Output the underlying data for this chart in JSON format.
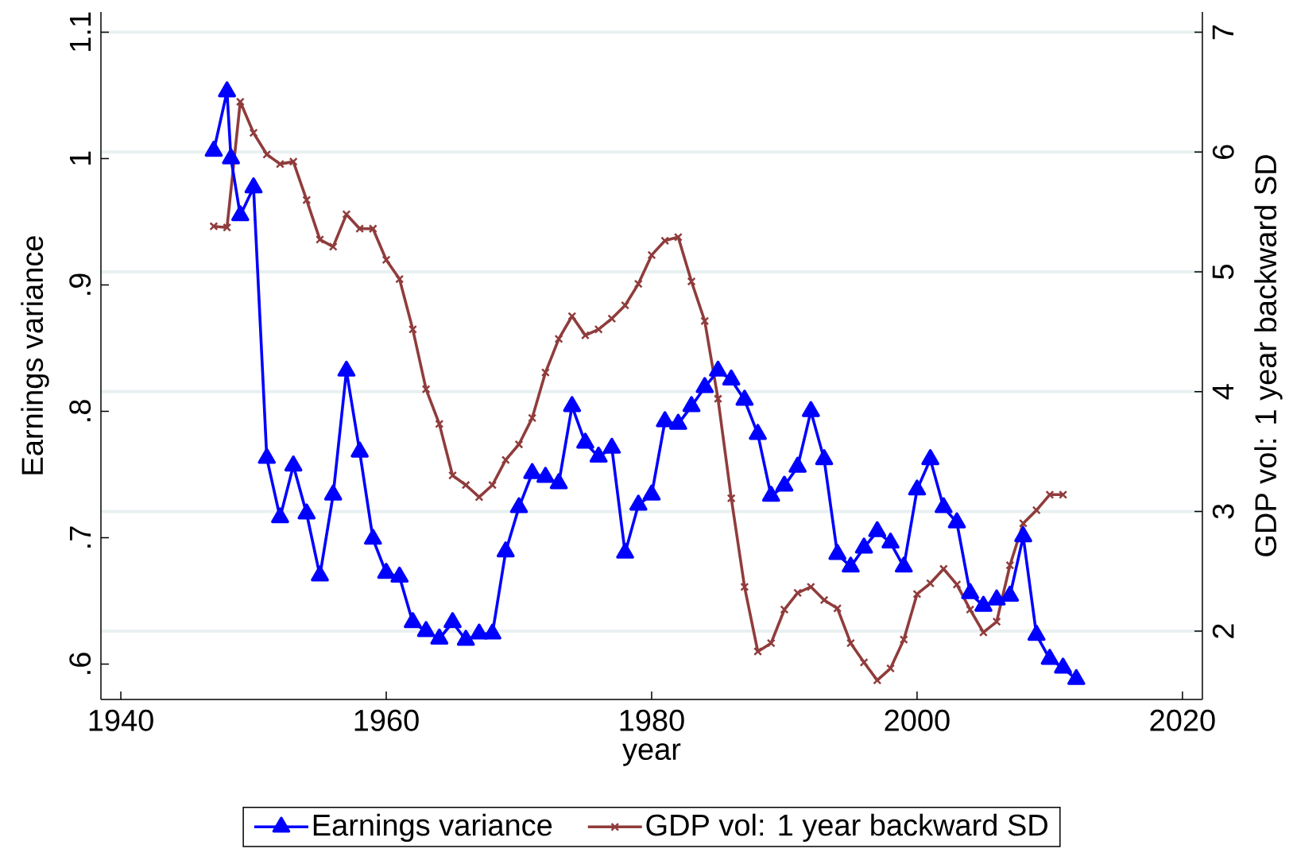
{
  "chart_data": {
    "type": "line",
    "xlabel": "year",
    "ylabel": "Earnings variance",
    "y2label": "GDP vol: 1 year backward SD",
    "xlim": [
      1938.5,
      2021.5
    ],
    "xticks": [
      1940,
      1960,
      1980,
      2000,
      2020
    ],
    "ylim": [
      0.572,
      1.116
    ],
    "yticks": [
      {
        "value": 0.6,
        "label": ".6"
      },
      {
        "value": 0.7,
        "label": ".7"
      },
      {
        "value": 0.8,
        "label": ".8"
      },
      {
        "value": 0.9,
        "label": ".9"
      },
      {
        "value": 1,
        "label": "1"
      },
      {
        "value": 1.1,
        "label": "1.1"
      }
    ],
    "y2lim": [
      1.43,
      7.17
    ],
    "y2ticks": [
      2,
      3,
      4,
      5,
      6,
      7
    ],
    "grid": "y",
    "legend": "bottom",
    "line_style": "solid",
    "series": [
      {
        "name": "Earnings variance",
        "color": "#0000ff",
        "marker": "triangle",
        "x": [
          1947,
          1948,
          1948.3,
          1949,
          1950,
          1951,
          1952,
          1953,
          1954,
          1955,
          1956,
          1957,
          1958,
          1959,
          1960,
          1961,
          1962,
          1963,
          1964,
          1965,
          1966,
          1967,
          1968,
          1969,
          1970,
          1971,
          1972,
          1973,
          1974,
          1975,
          1976,
          1977,
          1978,
          1979,
          1980,
          1981,
          1982,
          1983,
          1984,
          1985,
          1986,
          1987,
          1988,
          1989,
          1990,
          1991,
          1992,
          1993,
          1994,
          1995,
          1996,
          1997,
          1998,
          1999,
          2000,
          2001,
          2002,
          2003,
          2004,
          2005,
          2006,
          2007,
          2008,
          2009,
          2010,
          2011,
          2012
        ],
        "values": [
          1.006,
          1.053,
          1.0,
          0.955,
          0.977,
          0.763,
          0.716,
          0.757,
          0.719,
          0.67,
          0.734,
          0.832,
          0.768,
          0.699,
          0.672,
          0.669,
          0.633,
          0.626,
          0.62,
          0.633,
          0.619,
          0.624,
          0.624,
          0.689,
          0.724,
          0.751,
          0.748,
          0.743,
          0.804,
          0.775,
          0.764,
          0.771,
          0.688,
          0.726,
          0.734,
          0.792,
          0.79,
          0.804,
          0.819,
          0.832,
          0.825,
          0.809,
          0.782,
          0.733,
          0.741,
          0.756,
          0.8,
          0.762,
          0.687,
          0.677,
          0.692,
          0.705,
          0.696,
          0.677,
          0.738,
          0.762,
          0.724,
          0.712,
          0.656,
          0.646,
          0.651,
          0.654,
          0.701,
          0.623,
          0.604,
          0.597,
          0.588
        ]
      },
      {
        "name": "GDP vol: 1 year backward SD",
        "color": "#903c3c",
        "marker": "cross",
        "axis": "y2",
        "x": [
          1947,
          1948,
          1949,
          1950,
          1951,
          1952,
          1953,
          1954,
          1955,
          1956,
          1957,
          1958,
          1959,
          1960,
          1961,
          1962,
          1963,
          1964,
          1965,
          1966,
          1967,
          1968,
          1969,
          1970,
          1971,
          1972,
          1973,
          1974,
          1975,
          1976,
          1977,
          1978,
          1979,
          1980,
          1981,
          1982,
          1983,
          1984,
          1985,
          1986,
          1987,
          1988,
          1989,
          1990,
          1991,
          1992,
          1993,
          1994,
          1995,
          1996,
          1997,
          1998,
          1999,
          2000,
          2001,
          2002,
          2003,
          2004,
          2005,
          2006,
          2007,
          2008,
          2009,
          2010,
          2011
        ],
        "values": [
          5.38,
          5.37,
          6.42,
          6.16,
          5.98,
          5.9,
          5.92,
          5.6,
          5.27,
          5.21,
          5.48,
          5.36,
          5.36,
          5.1,
          4.94,
          4.52,
          4.02,
          3.73,
          3.3,
          3.22,
          3.12,
          3.22,
          3.43,
          3.56,
          3.78,
          4.16,
          4.44,
          4.63,
          4.47,
          4.52,
          4.61,
          4.72,
          4.9,
          5.14,
          5.26,
          5.29,
          4.92,
          4.59,
          3.94,
          3.11,
          2.37,
          1.83,
          1.9,
          2.18,
          2.32,
          2.37,
          2.26,
          2.19,
          1.9,
          1.74,
          1.59,
          1.69,
          1.93,
          2.31,
          2.4,
          2.52,
          2.39,
          2.18,
          1.99,
          2.08,
          2.55,
          2.9,
          3.01,
          3.14,
          3.14
        ]
      }
    ]
  }
}
